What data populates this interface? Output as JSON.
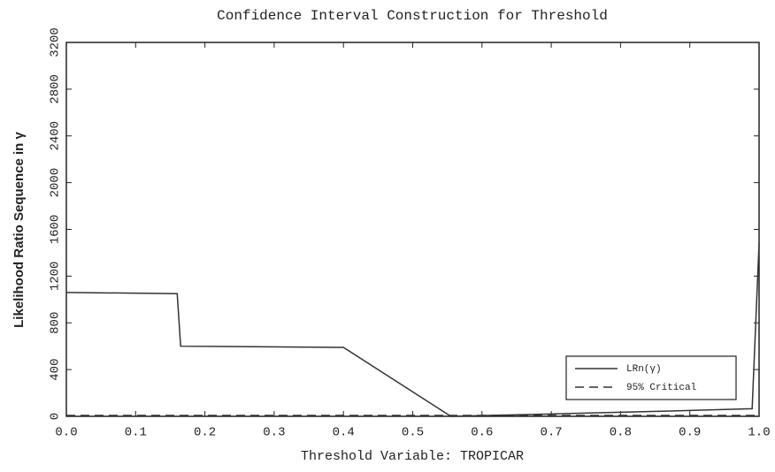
{
  "chart_data": {
    "type": "line",
    "title": "Confidence Interval Construction for Threshold",
    "x_label": "Threshold Variable: TROPICAR",
    "y_label": "Likelihood Ratio Sequence in γ",
    "series": [
      {
        "name": "LRn(γ)",
        "color": "#333333",
        "dash": "solid",
        "x": [
          0,
          0.16,
          0.165,
          0.4,
          0.555,
          0.7,
          0.8,
          0.9,
          0.99,
          1.0
        ],
        "values": [
          1060,
          1050,
          600,
          590,
          0,
          20,
          35,
          50,
          65,
          1480
        ]
      },
      {
        "name": "95% Critical",
        "color": "#333333",
        "dash": "dashed",
        "x": [
          0,
          1.0
        ],
        "values": [
          7.35,
          7.35
        ]
      }
    ],
    "xlim": [
      0,
      1.0
    ],
    "xticks": [
      {
        "value": 0,
        "label": "0.0"
      },
      0.1,
      0.2,
      0.3,
      0.4,
      0.5,
      0.6,
      0.7,
      0.8,
      0.9,
      {
        "value": 1,
        "label": "1.0"
      }
    ],
    "ylim": [
      0,
      3200
    ],
    "yticks": [
      0,
      400,
      800,
      1200,
      1600,
      2000,
      2400,
      2800,
      3200
    ],
    "legend": "lower-right"
  }
}
